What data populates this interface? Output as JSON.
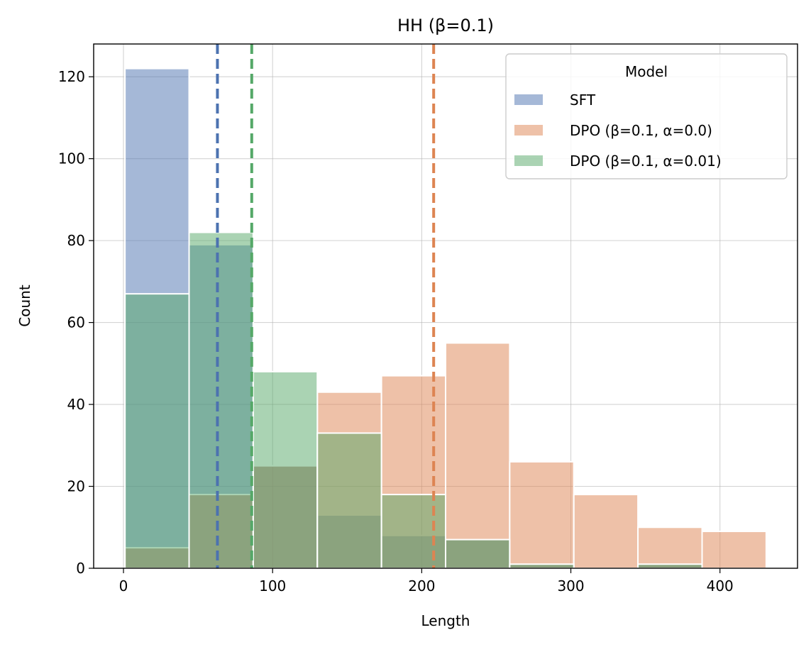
{
  "chart_data": {
    "type": "bar",
    "title": "HH (β=0.1)",
    "xlabel": "Length",
    "ylabel": "Count",
    "xlim": [
      -20,
      452
    ],
    "ylim": [
      0,
      128
    ],
    "xticks": [
      "0",
      "100",
      "200",
      "300",
      "400"
    ],
    "yticks": [
      "0",
      "20",
      "40",
      "60",
      "80",
      "100",
      "120"
    ],
    "grid": true,
    "legend": {
      "title": "Model",
      "position": "top-right"
    },
    "bin_edges": [
      1,
      44,
      87,
      130,
      173,
      216,
      259,
      302,
      345,
      388,
      431
    ],
    "series": [
      {
        "name": "SFT",
        "color": "#4c72b0",
        "values": [
          122,
          79,
          25,
          13,
          8,
          7,
          1,
          0,
          1,
          0
        ]
      },
      {
        "name": "DPO (β=0.1, α=0.0)",
        "color": "#dd8452",
        "values": [
          5,
          18,
          25,
          43,
          47,
          55,
          26,
          18,
          10,
          9
        ]
      },
      {
        "name": "DPO (β=0.1, α=0.01)",
        "color": "#55a868",
        "values": [
          67,
          82,
          48,
          33,
          18,
          7,
          1,
          0,
          1,
          0
        ]
      }
    ],
    "mean_lines": [
      {
        "series": "SFT",
        "x": 63,
        "color": "#4c72b0"
      },
      {
        "series": "DPO (β=0.1, α=0.01)",
        "x": 86,
        "color": "#55a868"
      },
      {
        "series": "DPO (β=0.1, α=0.0)",
        "x": 208,
        "color": "#dd8452"
      }
    ]
  }
}
